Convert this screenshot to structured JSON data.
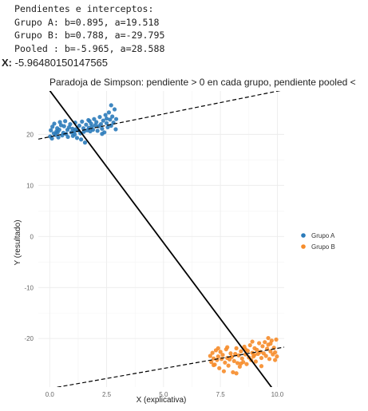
{
  "console": {
    "lines": [
      "Pendientes e interceptos:",
      "Grupo A: b=0.895, a=19.518",
      "Grupo B: b=0.788, a=-29.795",
      "Pooled : b=-5.965, a=28.588"
    ],
    "x_label": "X:",
    "x_value": "-5.96480150147565"
  },
  "colors": {
    "grupo_a": "#2b7bba",
    "grupo_b": "#f68c2a",
    "grid": "#ececec",
    "axis_text": "#666666",
    "title_text": "#222222"
  },
  "chart_data": {
    "type": "scatter",
    "title": "Paradoja de Simpson: pendiente > 0 en cada grupo, pendiente pooled <",
    "xlabel": "X (explicativa)",
    "ylabel": "Y (resultado)",
    "xlim": [
      -0.5,
      10.3
    ],
    "ylim": [
      -29.5,
      28.5
    ],
    "x_ticks": [
      0.0,
      2.5,
      5.0,
      7.5,
      10.0
    ],
    "x_tick_labels": [
      "0.0",
      "2.5",
      "5.0",
      "7.5",
      "10.0"
    ],
    "y_ticks": [
      20,
      10,
      0,
      -10,
      -20
    ],
    "y_tick_labels": [
      "20",
      "10",
      "0",
      "-10",
      "-20"
    ],
    "grid": true,
    "legend_position": "right",
    "series": [
      {
        "name": "Grupo A",
        "color": "#2b7bba",
        "points": [
          [
            0.02,
            19.6
          ],
          [
            0.05,
            20.8
          ],
          [
            0.1,
            19.2
          ],
          [
            0.12,
            21.5
          ],
          [
            0.18,
            20.2
          ],
          [
            0.2,
            22.1
          ],
          [
            0.25,
            19.9
          ],
          [
            0.3,
            20.6
          ],
          [
            0.33,
            21.2
          ],
          [
            0.38,
            19.4
          ],
          [
            0.42,
            20.9
          ],
          [
            0.45,
            22.4
          ],
          [
            0.5,
            21.8
          ],
          [
            0.55,
            19.8
          ],
          [
            0.6,
            20.3
          ],
          [
            0.63,
            21.6
          ],
          [
            0.68,
            22.6
          ],
          [
            0.72,
            20.1
          ],
          [
            0.78,
            20.9
          ],
          [
            0.8,
            19.5
          ],
          [
            0.85,
            21.4
          ],
          [
            0.9,
            22.0
          ],
          [
            0.95,
            20.4
          ],
          [
            1.0,
            21.1
          ],
          [
            1.02,
            19.7
          ],
          [
            1.08,
            20.6
          ],
          [
            1.12,
            22.3
          ],
          [
            1.15,
            21.0
          ],
          [
            1.2,
            19.3
          ],
          [
            1.25,
            20.8
          ],
          [
            1.3,
            21.7
          ],
          [
            1.35,
            20.2
          ],
          [
            1.38,
            19.0
          ],
          [
            1.42,
            22.5
          ],
          [
            1.48,
            21.2
          ],
          [
            1.5,
            20.5
          ],
          [
            1.55,
            18.4
          ],
          [
            1.6,
            21.9
          ],
          [
            1.65,
            20.8
          ],
          [
            1.7,
            22.8
          ],
          [
            1.72,
            21.3
          ],
          [
            1.78,
            20.6
          ],
          [
            1.82,
            22.1
          ],
          [
            1.85,
            21.5
          ],
          [
            1.9,
            20.9
          ],
          [
            1.95,
            23.0
          ],
          [
            2.0,
            21.8
          ],
          [
            2.05,
            22.4
          ],
          [
            2.1,
            20.7
          ],
          [
            2.15,
            21.6
          ],
          [
            2.2,
            23.4
          ],
          [
            2.25,
            22.0
          ],
          [
            2.3,
            21.1
          ],
          [
            2.35,
            22.7
          ],
          [
            2.4,
            20.4
          ],
          [
            2.45,
            23.8
          ],
          [
            2.5,
            22.2
          ],
          [
            2.55,
            21.4
          ],
          [
            2.6,
            24.3
          ],
          [
            2.65,
            22.9
          ],
          [
            2.7,
            21.7
          ],
          [
            2.75,
            23.5
          ],
          [
            2.8,
            22.3
          ],
          [
            2.85,
            24.9
          ],
          [
            2.9,
            21.0
          ],
          [
            2.92,
            23.0
          ],
          [
            2.7,
            25.7
          ],
          [
            2.5,
            23.1
          ],
          [
            2.3,
            20.1
          ],
          [
            1.1,
            20.0
          ],
          [
            0.35,
            20.4
          ],
          [
            1.75,
            22.6
          ]
        ]
      },
      {
        "name": "Grupo B",
        "color": "#f68c2a",
        "points": [
          [
            7.05,
            -23.4
          ],
          [
            7.1,
            -24.6
          ],
          [
            7.15,
            -22.8
          ],
          [
            7.2,
            -23.9
          ],
          [
            7.25,
            -25.1
          ],
          [
            7.3,
            -22.3
          ],
          [
            7.35,
            -24.2
          ],
          [
            7.4,
            -23.5
          ],
          [
            7.45,
            -25.8
          ],
          [
            7.5,
            -22.6
          ],
          [
            7.55,
            -24.0
          ],
          [
            7.6,
            -23.2
          ],
          [
            7.65,
            -26.4
          ],
          [
            7.7,
            -24.7
          ],
          [
            7.75,
            -22.1
          ],
          [
            7.8,
            -23.8
          ],
          [
            7.85,
            -25.3
          ],
          [
            7.9,
            -24.1
          ],
          [
            7.95,
            -22.9
          ],
          [
            8.0,
            -23.6
          ],
          [
            8.05,
            -26.6
          ],
          [
            8.1,
            -24.4
          ],
          [
            8.15,
            -23.0
          ],
          [
            8.2,
            -21.9
          ],
          [
            8.25,
            -24.8
          ],
          [
            8.3,
            -23.3
          ],
          [
            8.35,
            -25.5
          ],
          [
            8.4,
            -22.5
          ],
          [
            8.45,
            -23.9
          ],
          [
            8.5,
            -24.6
          ],
          [
            8.55,
            -21.6
          ],
          [
            8.6,
            -23.1
          ],
          [
            8.65,
            -25.0
          ],
          [
            8.7,
            -22.4
          ],
          [
            8.75,
            -23.7
          ],
          [
            8.8,
            -21.3
          ],
          [
            8.85,
            -24.2
          ],
          [
            8.9,
            -22.8
          ],
          [
            8.95,
            -23.5
          ],
          [
            9.0,
            -21.9
          ],
          [
            9.05,
            -24.5
          ],
          [
            9.1,
            -22.2
          ],
          [
            9.15,
            -23.0
          ],
          [
            9.2,
            -20.9
          ],
          [
            9.25,
            -22.6
          ],
          [
            9.3,
            -23.8
          ],
          [
            9.35,
            -21.5
          ],
          [
            9.4,
            -22.9
          ],
          [
            9.45,
            -20.7
          ],
          [
            9.5,
            -23.4
          ],
          [
            9.55,
            -22.0
          ],
          [
            9.6,
            -21.2
          ],
          [
            9.65,
            -24.0
          ],
          [
            9.7,
            -22.5
          ],
          [
            9.75,
            -20.4
          ],
          [
            9.8,
            -23.1
          ],
          [
            9.85,
            -21.8
          ],
          [
            9.9,
            -22.7
          ],
          [
            9.95,
            -20.2
          ],
          [
            9.98,
            -23.5
          ],
          [
            9.6,
            -19.9
          ],
          [
            8.2,
            -26.8
          ],
          [
            7.8,
            -21.7
          ],
          [
            9.3,
            -25.4
          ],
          [
            8.6,
            -22.1
          ],
          [
            7.4,
            -21.9
          ],
          [
            9.0,
            -23.2
          ],
          [
            8.4,
            -24.9
          ],
          [
            9.7,
            -21.0
          ],
          [
            7.2,
            -25.2
          ],
          [
            8.9,
            -20.6
          ],
          [
            9.9,
            -24.2
          ]
        ]
      }
    ],
    "lines": [
      {
        "name": "Grupo A",
        "slope": 0.895,
        "intercept": 19.518,
        "style": "dashed"
      },
      {
        "name": "Grupo B",
        "slope": 0.788,
        "intercept": -29.795,
        "style": "dashed"
      },
      {
        "name": "Pooled",
        "slope": -5.965,
        "intercept": 28.588,
        "style": "solid"
      }
    ]
  }
}
